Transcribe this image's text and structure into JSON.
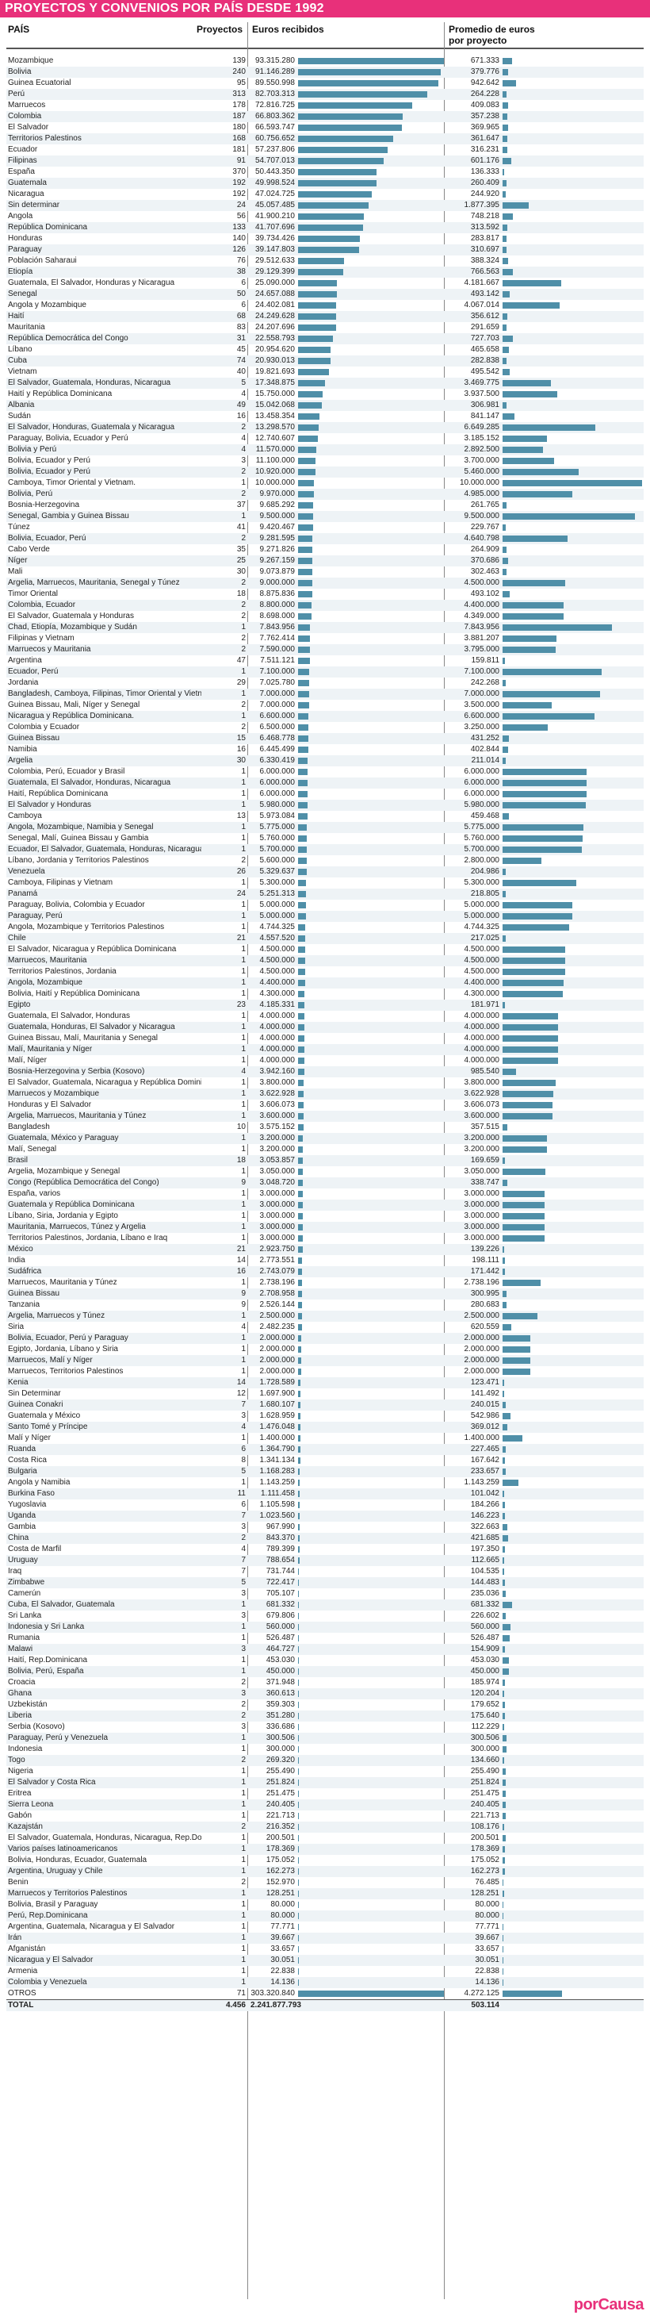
{
  "title": "PROYECTOS Y CONVENIOS POR PAÍS DESDE 1992",
  "headers": {
    "pais": "PAÍS",
    "proyectos": "Proyectos",
    "euros": "Euros recibidos",
    "promedio": "Promedio de euros por proyecto"
  },
  "logo": "porCausa",
  "colors": {
    "title_bg": "#e8307a",
    "bar": "#4f8fa8",
    "logo": "#e8307a",
    "row_alt": "#eef3f6"
  },
  "chart_data": {
    "type": "table",
    "columns": [
      "País",
      "Proyectos",
      "Euros recibidos",
      "Promedio de euros por proyecto"
    ],
    "rows": [
      [
        "Mozambique",
        "139",
        "93.315.280",
        "671.333"
      ],
      [
        "Bolivia",
        "240",
        "91.146.289",
        "379.776"
      ],
      [
        "Guinea Ecuatorial",
        "95",
        "89.550.998",
        "942.642"
      ],
      [
        "Perú",
        "313",
        "82.703.313",
        "264.228"
      ],
      [
        "Marruecos",
        "178",
        "72.816.725",
        "409.083"
      ],
      [
        "Colombia",
        "187",
        "66.803.362",
        "357.238"
      ],
      [
        "El Salvador",
        "180",
        "66.593.747",
        "369.965"
      ],
      [
        "Territorios Palestinos",
        "168",
        "60.756.652",
        "361.647"
      ],
      [
        "Ecuador",
        "181",
        "57.237.806",
        "316.231"
      ],
      [
        "Filipinas",
        "91",
        "54.707.013",
        "601.176"
      ],
      [
        "España",
        "370",
        "50.443.350",
        "136.333"
      ],
      [
        "Guatemala",
        "192",
        "49.998.524",
        "260.409"
      ],
      [
        "Nicaragua",
        "192",
        "47.024.725",
        "244.920"
      ],
      [
        "Sin determinar",
        "24",
        "45.057.485",
        "1.877.395"
      ],
      [
        "Angola",
        "56",
        "41.900.210",
        "748.218"
      ],
      [
        "República Dominicana",
        "133",
        "41.707.696",
        "313.592"
      ],
      [
        "Honduras",
        "140",
        "39.734.426",
        "283.817"
      ],
      [
        "Paraguay",
        "126",
        "39.147.803",
        "310.697"
      ],
      [
        "Población Saharaui",
        "76",
        "29.512.633",
        "388.324"
      ],
      [
        "Etiopía",
        "38",
        "29.129.399",
        "766.563"
      ],
      [
        "Guatemala, El Salvador, Honduras y Nicaragua",
        "6",
        "25.090.000",
        "4.181.667"
      ],
      [
        "Senegal",
        "50",
        "24.657.088",
        "493.142"
      ],
      [
        "Angola y Mozambique",
        "6",
        "24.402.081",
        "4.067.014"
      ],
      [
        "Haití",
        "68",
        "24.249.628",
        "356.612"
      ],
      [
        "Mauritania",
        "83",
        "24.207.696",
        "291.659"
      ],
      [
        "República Democrática del Congo",
        "31",
        "22.558.793",
        "727.703"
      ],
      [
        "Líbano",
        "45",
        "20.954.620",
        "465.658"
      ],
      [
        "Cuba",
        "74",
        "20.930.013",
        "282.838"
      ],
      [
        "Vietnam",
        "40",
        "19.821.693",
        "495.542"
      ],
      [
        "El Salvador, Guatemala, Honduras, Nicaragua",
        "5",
        "17.348.875",
        "3.469.775"
      ],
      [
        "Haití y República Dominicana",
        "4",
        "15.750.000",
        "3.937.500"
      ],
      [
        "Albania",
        "49",
        "15.042.068",
        "306.981"
      ],
      [
        "Sudán",
        "16",
        "13.458.354",
        "841.147"
      ],
      [
        "El Salvador, Honduras, Guatemala y Nicaragua",
        "2",
        "13.298.570",
        "6.649.285"
      ],
      [
        "Paraguay, Bolivia, Ecuador y Perú",
        "4",
        "12.740.607",
        "3.185.152"
      ],
      [
        "Bolivia y Perú",
        "4",
        "11.570.000",
        "2.892.500"
      ],
      [
        "Bolivia, Ecuador y Perú",
        "3",
        "11.100.000",
        "3.700.000"
      ],
      [
        "Bolivia, Ecuador y Perú",
        "2",
        "10.920.000",
        "5.460.000"
      ],
      [
        "Camboya, Timor Oriental y Vietnam.",
        "1",
        "10.000.000",
        "10.000.000"
      ],
      [
        "Bolivia, Perú",
        "2",
        "9.970.000",
        "4.985.000"
      ],
      [
        "Bosnia-Herzegovina",
        "37",
        "9.685.292",
        "261.765"
      ],
      [
        "Senegal, Gambia y Guinea Bissau",
        "1",
        "9.500.000",
        "9.500.000"
      ],
      [
        "Túnez",
        "41",
        "9.420.467",
        "229.767"
      ],
      [
        "Bolivia, Ecuador, Perú",
        "2",
        "9.281.595",
        "4.640.798"
      ],
      [
        "Cabo Verde",
        "35",
        "9.271.826",
        "264.909"
      ],
      [
        "Níger",
        "25",
        "9.267.159",
        "370.686"
      ],
      [
        "Mali",
        "30",
        "9.073.879",
        "302.463"
      ],
      [
        "Argelia, Marruecos, Mauritania, Senegal y Túnez",
        "2",
        "9.000.000",
        "4.500.000"
      ],
      [
        "Timor Oriental",
        "18",
        "8.875.836",
        "493.102"
      ],
      [
        "Colombia, Ecuador",
        "2",
        "8.800.000",
        "4.400.000"
      ],
      [
        "El Salvador, Guatemala y Honduras",
        "2",
        "8.698.000",
        "4.349.000"
      ],
      [
        "Chad, Etiopía, Mozambique y Sudán",
        "1",
        "7.843.956",
        "7.843.956"
      ],
      [
        "Filipinas y Vietnam",
        "2",
        "7.762.414",
        "3.881.207"
      ],
      [
        "Marruecos y Mauritania",
        "2",
        "7.590.000",
        "3.795.000"
      ],
      [
        "Argentina",
        "47",
        "7.511.121",
        "159.811"
      ],
      [
        "Ecuador, Perú",
        "1",
        "7.100.000",
        "7.100.000"
      ],
      [
        "Jordania",
        "29",
        "7.025.780",
        "242.268"
      ],
      [
        "Bangladesh, Camboya, Filipinas, Timor Oriental y Vietnam",
        "1",
        "7.000.000",
        "7.000.000"
      ],
      [
        "Guinea Bissau, Mali, Níger y Senegal",
        "2",
        "7.000.000",
        "3.500.000"
      ],
      [
        "Nicaragua y República Dominicana.",
        "1",
        "6.600.000",
        "6.600.000"
      ],
      [
        "Colombia y Ecuador",
        "2",
        "6.500.000",
        "3.250.000"
      ],
      [
        "Guinea Bissau",
        "15",
        "6.468.778",
        "431.252"
      ],
      [
        "Namibia",
        "16",
        "6.445.499",
        "402.844"
      ],
      [
        "Argelia",
        "30",
        "6.330.419",
        "211.014"
      ],
      [
        "Colombia, Perú, Ecuador y Brasil",
        "1",
        "6.000.000",
        "6.000.000"
      ],
      [
        "Guatemala, El Salvador, Honduras, Nicaragua",
        "1",
        "6.000.000",
        "6.000.000"
      ],
      [
        "Haití, República Dominicana",
        "1",
        "6.000.000",
        "6.000.000"
      ],
      [
        "El Salvador y Honduras",
        "1",
        "5.980.000",
        "5.980.000"
      ],
      [
        "Camboya",
        "13",
        "5.973.084",
        "459.468"
      ],
      [
        "Angola, Mozambique, Namibia y Senegal",
        "1",
        "5.775.000",
        "5.775.000"
      ],
      [
        "Senegal, Malí, Guinea Bissau y Gambia",
        "1",
        "5.760.000",
        "5.760.000"
      ],
      [
        "Ecuador, El Salvador, Guatemala, Honduras, Nicaragua",
        "1",
        "5.700.000",
        "5.700.000"
      ],
      [
        "Líbano, Jordania y Territorios Palestinos",
        "2",
        "5.600.000",
        "2.800.000"
      ],
      [
        "Venezuela",
        "26",
        "5.329.637",
        "204.986"
      ],
      [
        "Camboya, Filipinas y Vietnam",
        "1",
        "5.300.000",
        "5.300.000"
      ],
      [
        "Panamá",
        "24",
        "5.251.313",
        "218.805"
      ],
      [
        "Paraguay, Bolivia, Colombia y Ecuador",
        "1",
        "5.000.000",
        "5.000.000"
      ],
      [
        "Paraguay, Perú",
        "1",
        "5.000.000",
        "5.000.000"
      ],
      [
        "Angola, Mozambique y Territorios Palestinos",
        "1",
        "4.744.325",
        "4.744.325"
      ],
      [
        "Chile",
        "21",
        "4.557.520",
        "217.025"
      ],
      [
        "El Salvador, Nicaragua y República Dominicana",
        "1",
        "4.500.000",
        "4.500.000"
      ],
      [
        "Marruecos, Mauritania",
        "1",
        "4.500.000",
        "4.500.000"
      ],
      [
        "Territorios Palestinos, Jordania",
        "1",
        "4.500.000",
        "4.500.000"
      ],
      [
        "Angola, Mozambique",
        "1",
        "4.400.000",
        "4.400.000"
      ],
      [
        "Bolivia, Haití y República Dominicana",
        "1",
        "4.300.000",
        "4.300.000"
      ],
      [
        "Egipto",
        "23",
        "4.185.331",
        "181.971"
      ],
      [
        "Guatemala, El Salvador, Honduras",
        "1",
        "4.000.000",
        "4.000.000"
      ],
      [
        "Guatemala, Honduras, El Salvador y Nicaragua",
        "1",
        "4.000.000",
        "4.000.000"
      ],
      [
        "Guinea Bissau, Malí, Mauritania y Senegal",
        "1",
        "4.000.000",
        "4.000.000"
      ],
      [
        "Malí, Mauritania y Níger",
        "1",
        "4.000.000",
        "4.000.000"
      ],
      [
        "Malí, Níger",
        "1",
        "4.000.000",
        "4.000.000"
      ],
      [
        "Bosnia-Herzegovina y Serbia (Kosovo)",
        "4",
        "3.942.160",
        "985.540"
      ],
      [
        "El Salvador, Guatemala, Nicaragua y República Dominicana",
        "1",
        "3.800.000",
        "3.800.000"
      ],
      [
        "Marruecos y Mozambique",
        "1",
        "3.622.928",
        "3.622.928"
      ],
      [
        "Honduras y El Salvador",
        "1",
        "3.606.073",
        "3.606.073"
      ],
      [
        "Argelia, Marruecos, Mauritania y Túnez",
        "1",
        "3.600.000",
        "3.600.000"
      ],
      [
        "Bangladesh",
        "10",
        "3.575.152",
        "357.515"
      ],
      [
        "Guatemala, México y Paraguay",
        "1",
        "3.200.000",
        "3.200.000"
      ],
      [
        "Malí, Senegal",
        "1",
        "3.200.000",
        "3.200.000"
      ],
      [
        "Brasil",
        "18",
        "3.053.857",
        "169.659"
      ],
      [
        "Argelia, Mozambique y Senegal",
        "1",
        "3.050.000",
        "3.050.000"
      ],
      [
        "Congo (República Democrática del Congo)",
        "9",
        "3.048.720",
        "338.747"
      ],
      [
        "España, varios",
        "1",
        "3.000.000",
        "3.000.000"
      ],
      [
        "Guatemala y República Dominicana",
        "1",
        "3.000.000",
        "3.000.000"
      ],
      [
        "Líbano, Siria, Jordania y Egipto",
        "1",
        "3.000.000",
        "3.000.000"
      ],
      [
        "Mauritania, Marruecos, Túnez y Argelia",
        "1",
        "3.000.000",
        "3.000.000"
      ],
      [
        "Territorios Palestinos, Jordania, Líbano e Iraq",
        "1",
        "3.000.000",
        "3.000.000"
      ],
      [
        "México",
        "21",
        "2.923.750",
        "139.226"
      ],
      [
        "India",
        "14",
        "2.773.551",
        "198.111"
      ],
      [
        "Sudáfrica",
        "16",
        "2.743.079",
        "171.442"
      ],
      [
        "Marruecos, Mauritania y Túnez",
        "1",
        "2.738.196",
        "2.738.196"
      ],
      [
        "Guinea Bissau",
        "9",
        "2.708.958",
        "300.995"
      ],
      [
        "Tanzania",
        "9",
        "2.526.144",
        "280.683"
      ],
      [
        "Argelia, Marruecos y Túnez",
        "1",
        "2.500.000",
        "2.500.000"
      ],
      [
        "Siria",
        "4",
        "2.482.235",
        "620.559"
      ],
      [
        "Bolivia, Ecuador, Perú y Paraguay",
        "1",
        "2.000.000",
        "2.000.000"
      ],
      [
        "Egipto, Jordania, Líbano y Siria",
        "1",
        "2.000.000",
        "2.000.000"
      ],
      [
        "Marruecos, Malí y Níger",
        "1",
        "2.000.000",
        "2.000.000"
      ],
      [
        "Marruecos, Territorios Palestinos",
        "1",
        "2.000.000",
        "2.000.000"
      ],
      [
        "Kenia",
        "14",
        "1.728.589",
        "123.471"
      ],
      [
        "Sin Determinar",
        "12",
        "1.697.900",
        "141.492"
      ],
      [
        "Guinea Conakri",
        "7",
        "1.680.107",
        "240.015"
      ],
      [
        "Guatemala y México",
        "3",
        "1.628.959",
        "542.986"
      ],
      [
        "Santo Tomé y Príncipe",
        "4",
        "1.476.048",
        "369.012"
      ],
      [
        "Malí y Níger",
        "1",
        "1.400.000",
        "1.400.000"
      ],
      [
        "Ruanda",
        "6",
        "1.364.790",
        "227.465"
      ],
      [
        "Costa Rica",
        "8",
        "1.341.134",
        "167.642"
      ],
      [
        "Bulgaria",
        "5",
        "1.168.283",
        "233.657"
      ],
      [
        "Angola y Namibia",
        "1",
        "1.143.259",
        "1.143.259"
      ],
      [
        "Burkina Faso",
        "11",
        "1.111.458",
        "101.042"
      ],
      [
        "Yugoslavia",
        "6",
        "1.105.598",
        "184.266"
      ],
      [
        "Uganda",
        "7",
        "1.023.560",
        "146.223"
      ],
      [
        "Gambia",
        "3",
        "967.990",
        "322.663"
      ],
      [
        "China",
        "2",
        "843.370",
        "421.685"
      ],
      [
        "Costa de Marfil",
        "4",
        "789.399",
        "197.350"
      ],
      [
        "Uruguay",
        "7",
        "788.654",
        "112.665"
      ],
      [
        "Iraq",
        "7",
        "731.744",
        "104.535"
      ],
      [
        "Zimbabwe",
        "5",
        "722.417",
        "144.483"
      ],
      [
        "Camerún",
        "3",
        "705.107",
        "235.036"
      ],
      [
        "Cuba, El Salvador, Guatemala",
        "1",
        "681.332",
        "681.332"
      ],
      [
        "Sri Lanka",
        "3",
        "679.806",
        "226.602"
      ],
      [
        "Indonesia y Sri Lanka",
        "1",
        "560.000",
        "560.000"
      ],
      [
        "Rumania",
        "1",
        "526.487",
        "526.487"
      ],
      [
        "Malawi",
        "3",
        "464.727",
        "154.909"
      ],
      [
        "Haití, Rep.Dominicana",
        "1",
        "453.030",
        "453.030"
      ],
      [
        "Bolivia, Perú, España",
        "1",
        "450.000",
        "450.000"
      ],
      [
        "Croacia",
        "2",
        "371.948",
        "185.974"
      ],
      [
        "Ghana",
        "3",
        "360.613",
        "120.204"
      ],
      [
        "Uzbekistán",
        "2",
        "359.303",
        "179.652"
      ],
      [
        "Liberia",
        "2",
        "351.280",
        "175.640"
      ],
      [
        "Serbia (Kosovo)",
        "3",
        "336.686",
        "112.229"
      ],
      [
        "Paraguay, Perú y Venezuela",
        "1",
        "300.506",
        "300.506"
      ],
      [
        "Indonesia",
        "1",
        "300.000",
        "300.000"
      ],
      [
        "Togo",
        "2",
        "269.320",
        "134.660"
      ],
      [
        "Nigeria",
        "1",
        "255.490",
        "255.490"
      ],
      [
        "El Salvador y Costa Rica",
        "1",
        "251.824",
        "251.824"
      ],
      [
        "Eritrea",
        "1",
        "251.475",
        "251.475"
      ],
      [
        "Sierra Leona",
        "1",
        "240.405",
        "240.405"
      ],
      [
        "Gabón",
        "1",
        "221.713",
        "221.713"
      ],
      [
        "Kazajstán",
        "2",
        "216.352",
        "108.176"
      ],
      [
        "El Salvador, Guatemala, Honduras, Nicaragua, Rep.Dominicana",
        "1",
        "200.501",
        "200.501"
      ],
      [
        "Varios países latinoamericanos",
        "1",
        "178.369",
        "178.369"
      ],
      [
        "Bolivia, Honduras, Ecuador, Guatemala",
        "1",
        "175.052",
        "175.052"
      ],
      [
        "Argentina, Uruguay y Chile",
        "1",
        "162.273",
        "162.273"
      ],
      [
        "Benin",
        "2",
        "152.970",
        "76.485"
      ],
      [
        "Marruecos y Territorios Palestinos",
        "1",
        "128.251",
        "128.251"
      ],
      [
        "Bolivia, Brasil y Paraguay",
        "1",
        "80.000",
        "80.000"
      ],
      [
        "Perú, Rep.Dominicana",
        "1",
        "80.000",
        "80.000"
      ],
      [
        "Argentina, Guatemala, Nicaragua y El Salvador",
        "1",
        "77.771",
        "77.771"
      ],
      [
        "Irán",
        "1",
        "39.667",
        "39.667"
      ],
      [
        "Afganistán",
        "1",
        "33.657",
        "33.657"
      ],
      [
        "Nicaragua y El Salvador",
        "1",
        "30.051",
        "30.051"
      ],
      [
        "Armenia",
        "1",
        "22.838",
        "22.838"
      ],
      [
        "Colombia y Venezuela",
        "1",
        "14.136",
        "14.136"
      ],
      [
        "OTROS",
        "71",
        "303.320.840",
        "4.272.125"
      ]
    ],
    "total": [
      "TOTAL",
      "4.456",
      "2.241.877.793",
      "503.114"
    ]
  }
}
